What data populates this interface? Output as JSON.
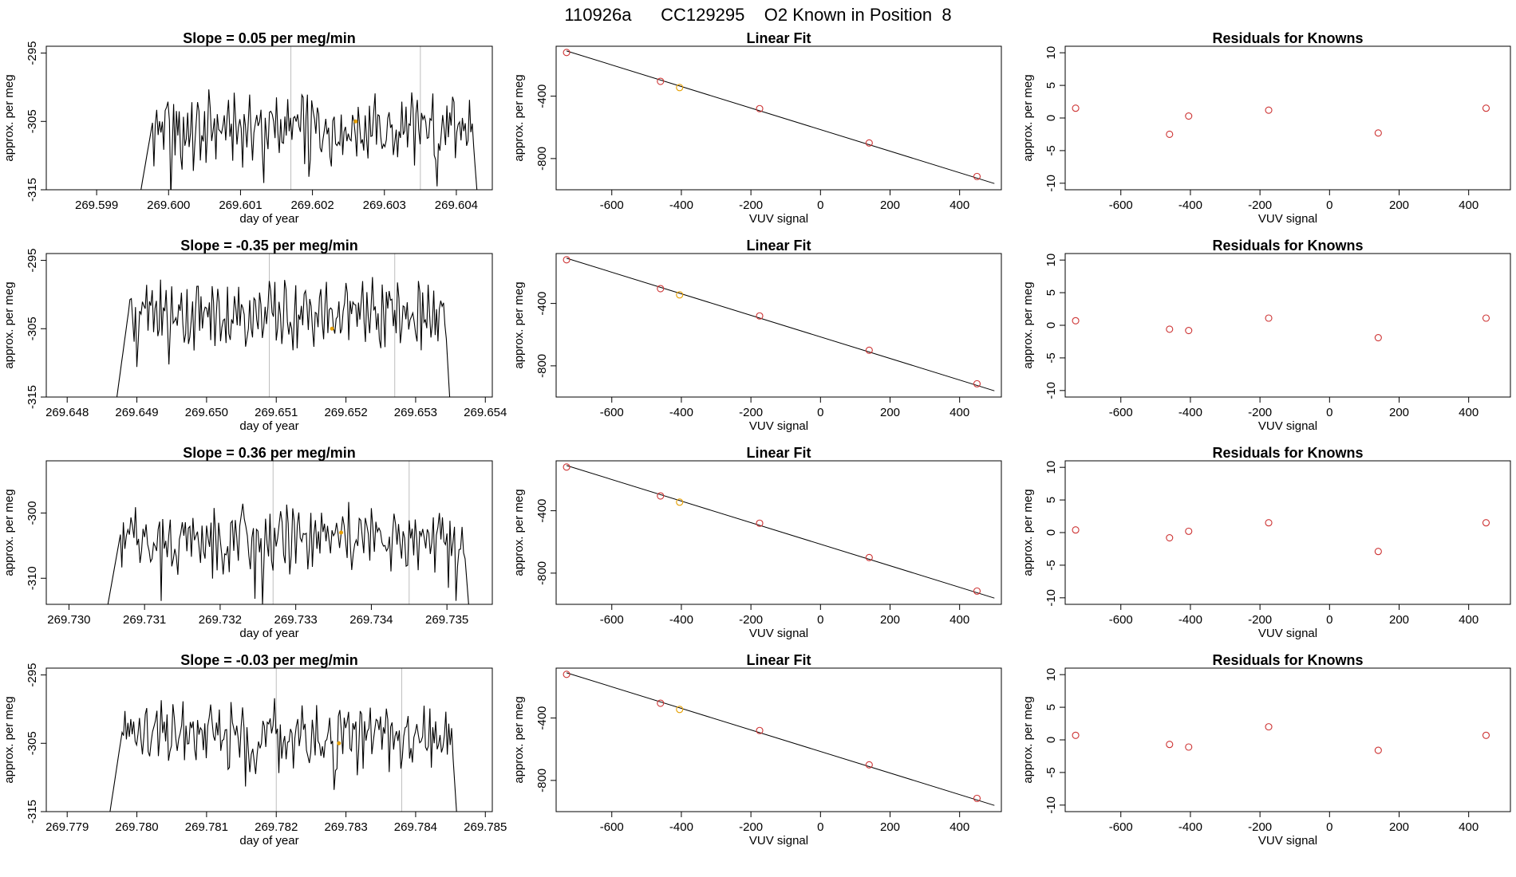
{
  "figure_title": "110926a      CC129295    O2 Known in Position  8",
  "colors": {
    "trace": "#000000",
    "highlight": "#e69f00",
    "known": "#cd3333",
    "vline": "#bebebe",
    "fitline": "#000000"
  },
  "chart_data": [
    {
      "type": "line",
      "panel": "time-series",
      "row": 0,
      "title": "Slope =  0.05  per meg/min",
      "xlabel": "day of year",
      "ylabel": "approx. per meg",
      "xlim": [
        269.5983,
        269.6045
      ],
      "ylim": [
        -315,
        -294
      ],
      "xticks": [
        "269.599",
        "269.600",
        "269.601",
        "269.602",
        "269.603",
        "269.604"
      ],
      "yticks": [
        "-295",
        "-305",
        "-315"
      ],
      "xtick_values": [
        269.599,
        269.6,
        269.601,
        269.602,
        269.603,
        269.604
      ],
      "ytick_values": [
        -295,
        -305,
        -315
      ],
      "trace_range": [
        269.5996,
        269.6043
      ],
      "base_level": -306,
      "amplitude": 4.0,
      "vlines": [
        269.6017,
        269.6035
      ],
      "highlight_point": {
        "x": 269.6026,
        "y": -305
      }
    },
    {
      "type": "scatter",
      "panel": "linear-fit",
      "row": 0,
      "title": "Linear Fit",
      "xlabel": "VUV signal",
      "ylabel": "approx. per meg",
      "xlim": [
        -760,
        520
      ],
      "ylim": [
        -1000,
        -80
      ],
      "xticks": [
        "-600",
        "-400",
        "-200",
        "0",
        "200",
        "400"
      ],
      "xtick_values": [
        -600,
        -400,
        -200,
        0,
        200,
        400
      ],
      "yticks": [
        "-400",
        "-800"
      ],
      "ytick_values": [
        -400,
        -800
      ],
      "points": [
        {
          "x": -730,
          "y": -120,
          "highlight": false
        },
        {
          "x": -460,
          "y": -305,
          "highlight": false
        },
        {
          "x": -405,
          "y": -345,
          "highlight": true
        },
        {
          "x": -175,
          "y": -480,
          "highlight": false
        },
        {
          "x": 140,
          "y": -700,
          "highlight": false
        },
        {
          "x": 450,
          "y": -915,
          "highlight": false
        }
      ],
      "fit_line": {
        "x0": -730,
        "y0": -110,
        "x1": 500,
        "y1": -960
      }
    },
    {
      "type": "scatter",
      "panel": "residuals",
      "row": 0,
      "title": "Residuals for Knowns",
      "xlabel": "VUV signal",
      "ylabel": "approx. per meg",
      "xlim": [
        -760,
        520
      ],
      "ylim": [
        -11,
        11
      ],
      "xticks": [
        "-600",
        "-400",
        "-200",
        "0",
        "200",
        "400"
      ],
      "xtick_values": [
        -600,
        -400,
        -200,
        0,
        200,
        400
      ],
      "yticks": [
        "10",
        "5",
        "0",
        "-5",
        "-10"
      ],
      "ytick_values": [
        10,
        5,
        0,
        -5,
        -10
      ],
      "points": [
        {
          "x": -730,
          "y": 1.5
        },
        {
          "x": -460,
          "y": -2.5
        },
        {
          "x": -405,
          "y": 0.3
        },
        {
          "x": -175,
          "y": 1.2
        },
        {
          "x": 140,
          "y": -2.3
        },
        {
          "x": 450,
          "y": 1.5
        }
      ]
    },
    {
      "type": "line",
      "panel": "time-series",
      "row": 1,
      "title": "Slope =  -0.35  per meg/min",
      "xlabel": "day of year",
      "ylabel": "approx. per meg",
      "xlim": [
        269.6477,
        269.6541
      ],
      "ylim": [
        -315,
        -294
      ],
      "xticks": [
        "269.648",
        "269.649",
        "269.650",
        "269.651",
        "269.652",
        "269.653",
        "269.654"
      ],
      "yticks": [
        "-295",
        "-305",
        "-315"
      ],
      "xtick_values": [
        269.648,
        269.649,
        269.65,
        269.651,
        269.652,
        269.653,
        269.654
      ],
      "ytick_values": [
        -295,
        -305,
        -315
      ],
      "trace_range": [
        269.6487,
        269.6535
      ],
      "base_level": -303,
      "amplitude": 4.0,
      "vlines": [
        269.6509,
        269.6527
      ],
      "highlight_point": {
        "x": 269.6518,
        "y": -305
      }
    },
    {
      "type": "scatter",
      "panel": "linear-fit",
      "row": 1,
      "title": "Linear Fit",
      "xlabel": "VUV signal",
      "ylabel": "approx. per meg",
      "xlim": [
        -760,
        520
      ],
      "ylim": [
        -1000,
        -80
      ],
      "xticks": [
        "-600",
        "-400",
        "-200",
        "0",
        "200",
        "400"
      ],
      "xtick_values": [
        -600,
        -400,
        -200,
        0,
        200,
        400
      ],
      "yticks": [
        "-400",
        "-800"
      ],
      "ytick_values": [
        -400,
        -800
      ],
      "points": [
        {
          "x": -730,
          "y": -120,
          "highlight": false
        },
        {
          "x": -460,
          "y": -305,
          "highlight": false
        },
        {
          "x": -405,
          "y": -345,
          "highlight": true
        },
        {
          "x": -175,
          "y": -480,
          "highlight": false
        },
        {
          "x": 140,
          "y": -700,
          "highlight": false
        },
        {
          "x": 450,
          "y": -915,
          "highlight": false
        }
      ],
      "fit_line": {
        "x0": -730,
        "y0": -110,
        "x1": 500,
        "y1": -960
      }
    },
    {
      "type": "scatter",
      "panel": "residuals",
      "row": 1,
      "title": "Residuals for Knowns",
      "xlabel": "VUV signal",
      "ylabel": "approx. per meg",
      "xlim": [
        -760,
        520
      ],
      "ylim": [
        -11,
        11
      ],
      "xticks": [
        "-600",
        "-400",
        "-200",
        "0",
        "200",
        "400"
      ],
      "xtick_values": [
        -600,
        -400,
        -200,
        0,
        200,
        400
      ],
      "yticks": [
        "10",
        "5",
        "0",
        "-5",
        "-10"
      ],
      "ytick_values": [
        10,
        5,
        0,
        -5,
        -10
      ],
      "points": [
        {
          "x": -730,
          "y": 0.7
        },
        {
          "x": -460,
          "y": -0.6
        },
        {
          "x": -405,
          "y": -0.8
        },
        {
          "x": -175,
          "y": 1.1
        },
        {
          "x": 140,
          "y": -1.9
        },
        {
          "x": 450,
          "y": 1.1
        }
      ]
    },
    {
      "type": "line",
      "panel": "time-series",
      "row": 2,
      "title": "Slope =  0.36  per meg/min",
      "xlabel": "day of year",
      "ylabel": "approx. per meg",
      "xlim": [
        269.7297,
        269.7356
      ],
      "ylim": [
        -314,
        -292
      ],
      "xticks": [
        "269.730",
        "269.731",
        "269.732",
        "269.733",
        "269.734",
        "269.735"
      ],
      "yticks": [
        "-300",
        "-310"
      ],
      "xtick_values": [
        269.73,
        269.731,
        269.732,
        269.733,
        269.734,
        269.735
      ],
      "ytick_values": [
        -300,
        -310
      ],
      "trace_range": [
        269.7305,
        269.7353
      ],
      "base_level": -304,
      "amplitude": 4.0,
      "vlines": [
        269.7327,
        269.7345
      ],
      "highlight_point": {
        "x": 269.7336,
        "y": -303
      }
    },
    {
      "type": "scatter",
      "panel": "linear-fit",
      "row": 2,
      "title": "Linear Fit",
      "xlabel": "VUV signal",
      "ylabel": "approx. per meg",
      "xlim": [
        -760,
        520
      ],
      "ylim": [
        -1000,
        -80
      ],
      "xticks": [
        "-600",
        "-400",
        "-200",
        "0",
        "200",
        "400"
      ],
      "xtick_values": [
        -600,
        -400,
        -200,
        0,
        200,
        400
      ],
      "yticks": [
        "-400",
        "-800"
      ],
      "ytick_values": [
        -400,
        -800
      ],
      "points": [
        {
          "x": -730,
          "y": -120,
          "highlight": false
        },
        {
          "x": -460,
          "y": -305,
          "highlight": false
        },
        {
          "x": -405,
          "y": -345,
          "highlight": true
        },
        {
          "x": -175,
          "y": -480,
          "highlight": false
        },
        {
          "x": 140,
          "y": -700,
          "highlight": false
        },
        {
          "x": 450,
          "y": -915,
          "highlight": false
        }
      ],
      "fit_line": {
        "x0": -730,
        "y0": -110,
        "x1": 500,
        "y1": -960
      }
    },
    {
      "type": "scatter",
      "panel": "residuals",
      "row": 2,
      "title": "Residuals for Knowns",
      "xlabel": "VUV signal",
      "ylabel": "approx. per meg",
      "xlim": [
        -760,
        520
      ],
      "ylim": [
        -11,
        11
      ],
      "xticks": [
        "-600",
        "-400",
        "-200",
        "0",
        "200",
        "400"
      ],
      "xtick_values": [
        -600,
        -400,
        -200,
        0,
        200,
        400
      ],
      "yticks": [
        "10",
        "5",
        "0",
        "-5",
        "-10"
      ],
      "ytick_values": [
        10,
        5,
        0,
        -5,
        -10
      ],
      "points": [
        {
          "x": -730,
          "y": 0.4
        },
        {
          "x": -460,
          "y": -0.8
        },
        {
          "x": -405,
          "y": 0.2
        },
        {
          "x": -175,
          "y": 1.5
        },
        {
          "x": 140,
          "y": -2.9
        },
        {
          "x": 450,
          "y": 1.5
        }
      ]
    },
    {
      "type": "line",
      "panel": "time-series",
      "row": 3,
      "title": "Slope =  -0.03  per meg/min",
      "xlabel": "day of year",
      "ylabel": "approx. per meg",
      "xlim": [
        269.7787,
        269.7851
      ],
      "ylim": [
        -315,
        -294
      ],
      "xticks": [
        "269.779",
        "269.780",
        "269.781",
        "269.782",
        "269.783",
        "269.784",
        "269.785"
      ],
      "yticks": [
        "-295",
        "-305",
        "-315"
      ],
      "xtick_values": [
        269.779,
        269.78,
        269.781,
        269.782,
        269.783,
        269.784,
        269.785
      ],
      "ytick_values": [
        -295,
        -305,
        -315
      ],
      "trace_range": [
        269.7796,
        269.7846
      ],
      "base_level": -304,
      "amplitude": 4.0,
      "vlines": [
        269.782,
        269.7838
      ],
      "highlight_point": {
        "x": 269.7829,
        "y": -305
      }
    },
    {
      "type": "scatter",
      "panel": "linear-fit",
      "row": 3,
      "title": "Linear Fit",
      "xlabel": "VUV signal",
      "ylabel": "approx. per meg",
      "xlim": [
        -760,
        520
      ],
      "ylim": [
        -1000,
        -80
      ],
      "xticks": [
        "-600",
        "-400",
        "-200",
        "0",
        "200",
        "400"
      ],
      "xtick_values": [
        -600,
        -400,
        -200,
        0,
        200,
        400
      ],
      "yticks": [
        "-400",
        "-800"
      ],
      "ytick_values": [
        -400,
        -800
      ],
      "points": [
        {
          "x": -730,
          "y": -120,
          "highlight": false
        },
        {
          "x": -460,
          "y": -305,
          "highlight": false
        },
        {
          "x": -405,
          "y": -345,
          "highlight": true
        },
        {
          "x": -175,
          "y": -480,
          "highlight": false
        },
        {
          "x": 140,
          "y": -700,
          "highlight": false
        },
        {
          "x": 450,
          "y": -915,
          "highlight": false
        }
      ],
      "fit_line": {
        "x0": -730,
        "y0": -110,
        "x1": 500,
        "y1": -960
      }
    },
    {
      "type": "scatter",
      "panel": "residuals",
      "row": 3,
      "title": "Residuals for Knowns",
      "xlabel": "VUV signal",
      "ylabel": "approx. per meg",
      "xlim": [
        -760,
        520
      ],
      "ylim": [
        -11,
        11
      ],
      "xticks": [
        "-600",
        "-400",
        "-200",
        "0",
        "200",
        "400"
      ],
      "xtick_values": [
        -600,
        -400,
        -200,
        0,
        200,
        400
      ],
      "yticks": [
        "10",
        "5",
        "0",
        "-5",
        "-10"
      ],
      "ytick_values": [
        10,
        5,
        0,
        -5,
        -10
      ],
      "points": [
        {
          "x": -730,
          "y": 0.7
        },
        {
          "x": -460,
          "y": -0.7
        },
        {
          "x": -405,
          "y": -1.1
        },
        {
          "x": -175,
          "y": 2.0
        },
        {
          "x": 140,
          "y": -1.6
        },
        {
          "x": 450,
          "y": 0.7
        }
      ]
    }
  ]
}
